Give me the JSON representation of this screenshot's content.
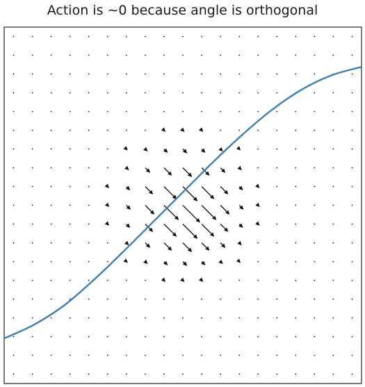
{
  "chart_data": {
    "type": "quiver",
    "title": "Action is  ∼0 because angle is orthogonal",
    "xlabel": "",
    "ylabel": "",
    "xlim": [
      -3,
      3
    ],
    "ylim": [
      -3,
      3
    ],
    "axis_ticks": false,
    "grid": false,
    "curve": {
      "function": "sigmoid-shaped curve rising from lower-left to upper-right",
      "color": "#3a7fb5",
      "points": [
        [
          -3.0,
          -2.24
        ],
        [
          -2.5,
          -2.01
        ],
        [
          -2.0,
          -1.69
        ],
        [
          -1.5,
          -1.26
        ],
        [
          -1.0,
          -0.78
        ],
        [
          -0.5,
          -0.28
        ],
        [
          0.0,
          0.22
        ],
        [
          0.5,
          0.72
        ],
        [
          1.0,
          1.19
        ],
        [
          1.5,
          1.61
        ],
        [
          2.0,
          1.95
        ],
        [
          2.5,
          2.19
        ],
        [
          3.0,
          2.33
        ]
      ]
    },
    "vector_field": {
      "grid_count": 19,
      "direction": [
        1,
        -1
      ],
      "peak_magnitude": 0.4,
      "width": 0.55,
      "color": "#111111",
      "center": [
        0,
        0
      ]
    }
  }
}
